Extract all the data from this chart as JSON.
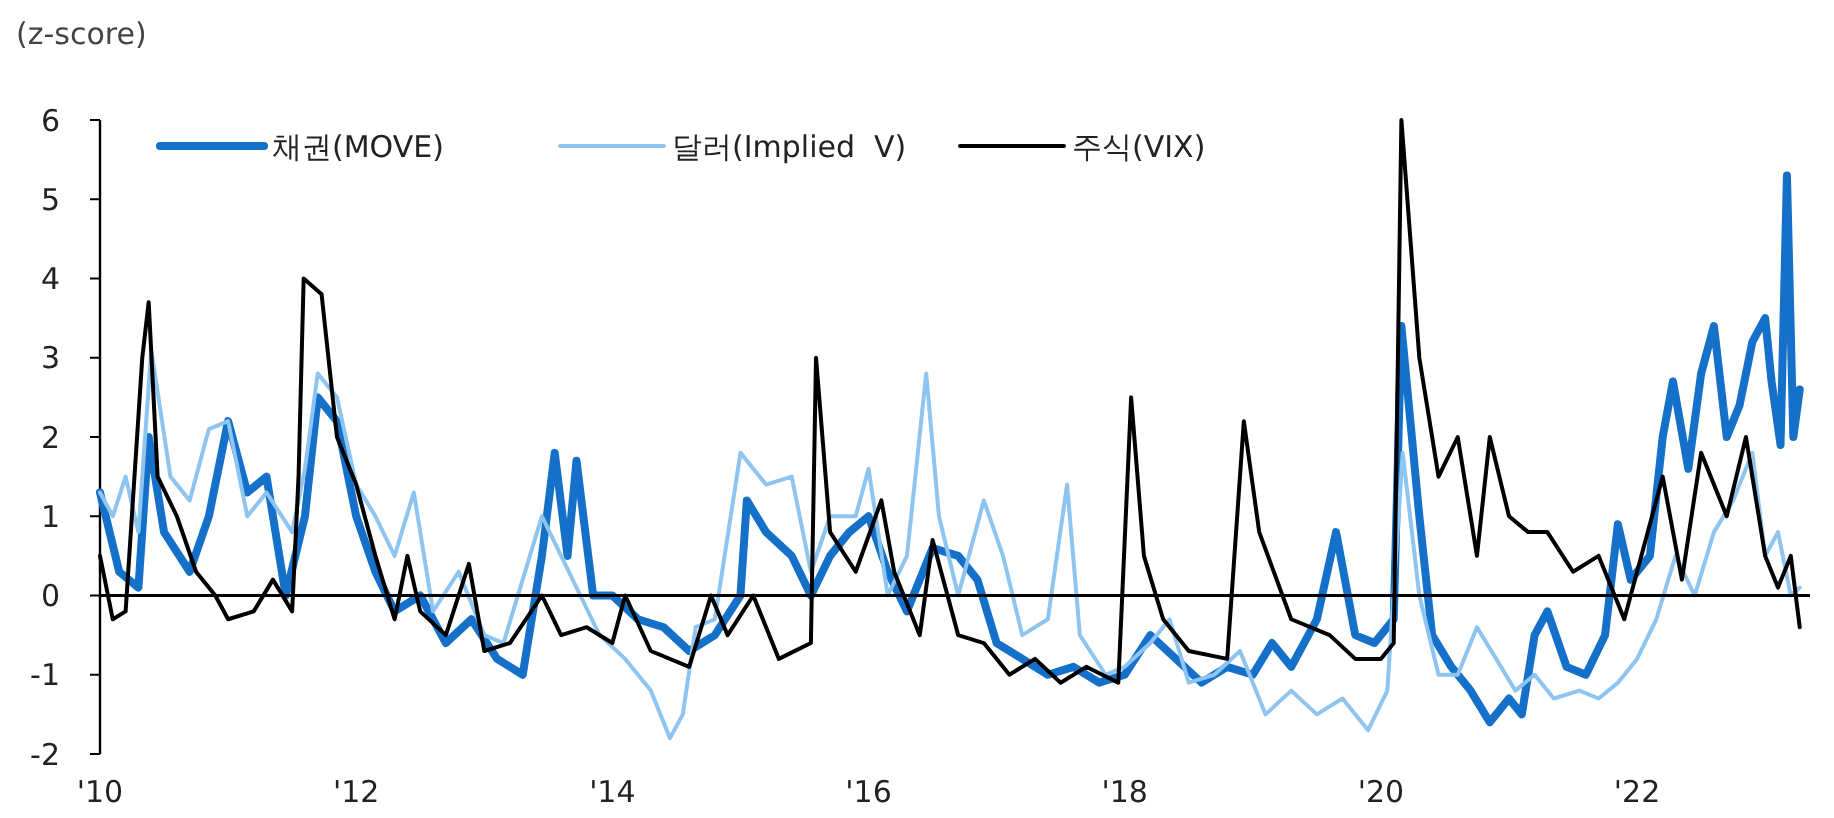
{
  "chart_data": {
    "type": "line",
    "ylabel": "(z-score)",
    "xlim": [
      2010,
      2023.35
    ],
    "ylim": [
      -2,
      6
    ],
    "yticks": [
      -2,
      -1,
      0,
      1,
      2,
      3,
      4,
      5,
      6
    ],
    "xticks": [
      {
        "value": 2010,
        "label": "'10"
      },
      {
        "value": 2012,
        "label": "'12"
      },
      {
        "value": 2014,
        "label": "'14"
      },
      {
        "value": 2016,
        "label": "'16"
      },
      {
        "value": 2018,
        "label": "'18"
      },
      {
        "value": 2020,
        "label": "'20"
      },
      {
        "value": 2022,
        "label": "'22"
      }
    ],
    "grid": false,
    "legend": "top left",
    "marker": "none",
    "line_style": "solid",
    "ref_lines": [
      {
        "axis": "y",
        "value": 0,
        "color": "#000000"
      }
    ],
    "series": [
      {
        "name": "채권(MOVE)",
        "color": "#1470c8",
        "x": [
          2010,
          2010.15,
          2010.3,
          2010.38,
          2010.5,
          2010.7,
          2010.85,
          2011,
          2011.15,
          2011.3,
          2011.45,
          2011.6,
          2011.7,
          2011.85,
          2012,
          2012.15,
          2012.3,
          2012.5,
          2012.7,
          2012.9,
          2013.1,
          2013.3,
          2013.45,
          2013.55,
          2013.65,
          2013.72,
          2013.85,
          2014,
          2014.2,
          2014.4,
          2014.6,
          2014.8,
          2015,
          2015.05,
          2015.2,
          2015.4,
          2015.55,
          2015.7,
          2015.85,
          2016,
          2016.15,
          2016.3,
          2016.5,
          2016.7,
          2016.85,
          2017,
          2017.2,
          2017.4,
          2017.6,
          2017.8,
          2018,
          2018.2,
          2018.4,
          2018.6,
          2018.8,
          2019,
          2019.15,
          2019.3,
          2019.5,
          2019.65,
          2019.8,
          2019.95,
          2020.1,
          2020.16,
          2020.3,
          2020.4,
          2020.55,
          2020.7,
          2020.85,
          2021,
          2021.1,
          2021.2,
          2021.3,
          2021.45,
          2021.6,
          2021.75,
          2021.85,
          2021.95,
          2022.1,
          2022.2,
          2022.28,
          2022.4,
          2022.5,
          2022.6,
          2022.7,
          2022.8,
          2022.9,
          2023,
          2023.05,
          2023.12,
          2023.17,
          2023.22,
          2023.27
        ],
        "values": [
          1.3,
          0.3,
          0.1,
          2.0,
          0.8,
          0.3,
          1.0,
          2.2,
          1.3,
          1.5,
          0.0,
          1.0,
          2.5,
          2.2,
          1.0,
          0.3,
          -0.2,
          0.0,
          -0.6,
          -0.3,
          -0.8,
          -1.0,
          0.5,
          1.8,
          0.5,
          1.7,
          0.0,
          0.0,
          -0.3,
          -0.4,
          -0.7,
          -0.5,
          0.0,
          1.2,
          0.8,
          0.5,
          0.0,
          0.5,
          0.8,
          1.0,
          0.3,
          -0.2,
          0.6,
          0.5,
          0.2,
          -0.6,
          -0.8,
          -1.0,
          -0.9,
          -1.1,
          -1.0,
          -0.5,
          -0.8,
          -1.1,
          -0.9,
          -1.0,
          -0.6,
          -0.9,
          -0.3,
          0.8,
          -0.5,
          -0.6,
          -0.3,
          3.4,
          1.0,
          -0.5,
          -0.9,
          -1.2,
          -1.6,
          -1.3,
          -1.5,
          -0.5,
          -0.2,
          -0.9,
          -1.0,
          -0.5,
          0.9,
          0.2,
          0.5,
          2.0,
          2.7,
          1.6,
          2.8,
          3.4,
          2.0,
          2.4,
          3.2,
          3.5,
          2.7,
          1.9,
          5.3,
          2.0,
          2.6
        ]
      },
      {
        "name": "달러(Implied  V)",
        "color": "#8ec4f0",
        "x": [
          2010,
          2010.1,
          2010.2,
          2010.3,
          2010.4,
          2010.55,
          2010.7,
          2010.85,
          2011,
          2011.15,
          2011.3,
          2011.5,
          2011.6,
          2011.7,
          2011.85,
          2012,
          2012.15,
          2012.3,
          2012.45,
          2012.6,
          2012.8,
          2013,
          2013.15,
          2013.3,
          2013.45,
          2013.6,
          2013.75,
          2013.9,
          2014.1,
          2014.3,
          2014.45,
          2014.55,
          2014.65,
          2014.8,
          2015,
          2015.2,
          2015.4,
          2015.55,
          2015.7,
          2015.9,
          2016,
          2016.15,
          2016.3,
          2016.45,
          2016.55,
          2016.7,
          2016.9,
          2017.05,
          2017.2,
          2017.4,
          2017.55,
          2017.65,
          2017.85,
          2018,
          2018.2,
          2018.35,
          2018.5,
          2018.7,
          2018.9,
          2019.1,
          2019.3,
          2019.5,
          2019.7,
          2019.9,
          2020.05,
          2020.17,
          2020.3,
          2020.45,
          2020.6,
          2020.75,
          2020.9,
          2021.05,
          2021.2,
          2021.35,
          2021.55,
          2021.7,
          2021.85,
          2022,
          2022.15,
          2022.3,
          2022.45,
          2022.6,
          2022.75,
          2022.9,
          2023,
          2023.1,
          2023.2,
          2023.27
        ],
        "values": [
          1.3,
          1.0,
          1.5,
          0.8,
          3.1,
          1.5,
          1.2,
          2.1,
          2.2,
          1.0,
          1.3,
          0.8,
          1.6,
          2.8,
          2.5,
          1.4,
          1.0,
          0.5,
          1.3,
          -0.2,
          0.3,
          -0.5,
          -0.6,
          0.2,
          1.0,
          0.5,
          0.0,
          -0.5,
          -0.8,
          -1.2,
          -1.8,
          -1.5,
          -0.4,
          -0.3,
          1.8,
          1.4,
          1.5,
          0.3,
          1.0,
          1.0,
          1.6,
          0.0,
          0.5,
          2.8,
          1.0,
          0.0,
          1.2,
          0.5,
          -0.5,
          -0.3,
          1.4,
          -0.5,
          -1.0,
          -0.9,
          -0.6,
          -0.3,
          -1.1,
          -1.0,
          -0.7,
          -1.5,
          -1.2,
          -1.5,
          -1.3,
          -1.7,
          -1.2,
          1.8,
          0.0,
          -1.0,
          -1.0,
          -0.4,
          -0.8,
          -1.2,
          -1.0,
          -1.3,
          -1.2,
          -1.3,
          -1.1,
          -0.8,
          -0.3,
          0.5,
          0.0,
          0.8,
          1.2,
          1.8,
          0.5,
          0.8,
          0.0,
          0.1
        ]
      },
      {
        "name": "주식(VIX)",
        "color": "#000000",
        "x": [
          2010,
          2010.1,
          2010.2,
          2010.33,
          2010.38,
          2010.45,
          2010.6,
          2010.75,
          2010.9,
          2011,
          2011.2,
          2011.35,
          2011.5,
          2011.55,
          2011.59,
          2011.73,
          2011.85,
          2012,
          2012.15,
          2012.3,
          2012.4,
          2012.5,
          2012.7,
          2012.88,
          2013,
          2013.2,
          2013.45,
          2013.6,
          2013.8,
          2014,
          2014.1,
          2014.3,
          2014.6,
          2014.77,
          2014.9,
          2015.1,
          2015.3,
          2015.55,
          2015.59,
          2015.7,
          2015.9,
          2016.1,
          2016.2,
          2016.4,
          2016.5,
          2016.7,
          2016.9,
          2017.1,
          2017.3,
          2017.5,
          2017.7,
          2017.95,
          2018.05,
          2018.15,
          2018.3,
          2018.5,
          2018.8,
          2018.93,
          2019.05,
          2019.3,
          2019.6,
          2019.8,
          2020,
          2020.1,
          2020.16,
          2020.3,
          2020.45,
          2020.6,
          2020.75,
          2020.85,
          2021,
          2021.15,
          2021.3,
          2021.5,
          2021.7,
          2021.9,
          2022.05,
          2022.2,
          2022.35,
          2022.5,
          2022.7,
          2022.85,
          2023,
          2023.1,
          2023.2,
          2023.27
        ],
        "values": [
          0.5,
          -0.3,
          -0.2,
          3.0,
          3.7,
          1.5,
          1.0,
          0.3,
          0.0,
          -0.3,
          -0.2,
          0.2,
          -0.2,
          1.5,
          4.0,
          3.8,
          2.0,
          1.4,
          0.5,
          -0.3,
          0.5,
          -0.2,
          -0.5,
          0.4,
          -0.7,
          -0.6,
          0.0,
          -0.5,
          -0.4,
          -0.6,
          0.0,
          -0.7,
          -0.9,
          0.0,
          -0.5,
          0.0,
          -0.8,
          -0.6,
          3.0,
          0.8,
          0.3,
          1.2,
          0.3,
          -0.5,
          0.7,
          -0.5,
          -0.6,
          -1.0,
          -0.8,
          -1.1,
          -0.9,
          -1.1,
          2.5,
          0.5,
          -0.3,
          -0.7,
          -0.8,
          2.2,
          0.8,
          -0.3,
          -0.5,
          -0.8,
          -0.8,
          -0.6,
          6.0,
          3.0,
          1.5,
          2.0,
          0.5,
          2.0,
          1.0,
          0.8,
          0.8,
          0.3,
          0.5,
          -0.3,
          0.6,
          1.5,
          0.2,
          1.8,
          1.0,
          2.0,
          0.5,
          0.1,
          0.5,
          -0.4
        ]
      }
    ]
  }
}
